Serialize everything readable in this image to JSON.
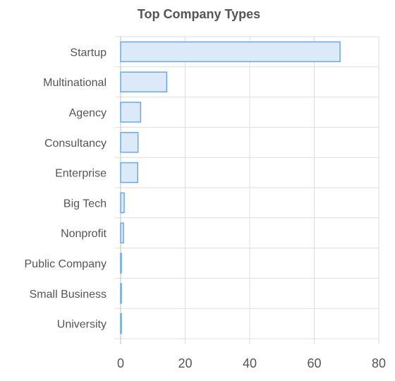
{
  "chart_data": {
    "type": "bar",
    "orientation": "horizontal",
    "title": "Top Company Types",
    "categories": [
      "Startup",
      "Multinational",
      "Agency",
      "Consultancy",
      "Enterprise",
      "Big Tech",
      "Nonprofit",
      "Public Company",
      "Small Business",
      "University"
    ],
    "values": [
      68,
      14.3,
      6.2,
      5.4,
      5.3,
      1.1,
      0.9,
      0.2,
      0.2,
      0.2
    ],
    "xlim": [
      0,
      80
    ],
    "xticks": [
      0,
      20,
      40,
      60,
      80
    ],
    "grid": true,
    "legend": "none",
    "colors": {
      "bar_fill": "#dce9f9",
      "bar_stroke": "#6aa9e6",
      "grid": "#dedede",
      "axis": "#bfbfbf",
      "text": "#555555"
    }
  }
}
